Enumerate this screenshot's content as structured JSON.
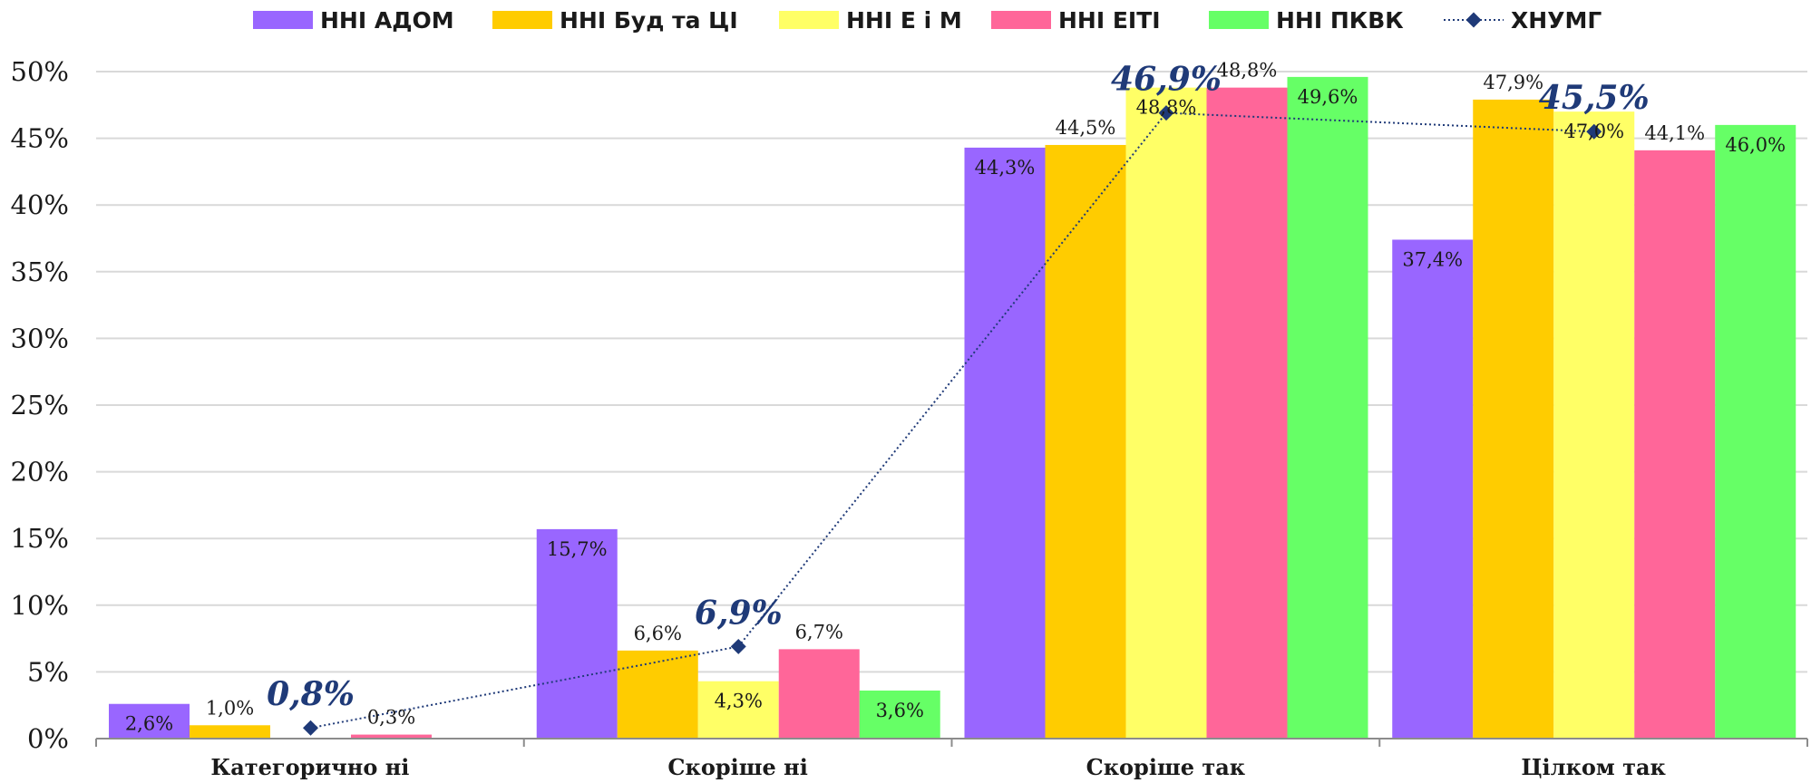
{
  "chart_data": {
    "type": "bar",
    "categories": [
      "Категорично ні",
      "Скоріше ні",
      "Скоріше так",
      "Цілком так"
    ],
    "ylim": [
      0,
      50
    ],
    "yticks": [
      0,
      5,
      10,
      15,
      20,
      25,
      30,
      35,
      40,
      45,
      50
    ],
    "ytick_labels": [
      "0%",
      "5%",
      "10%",
      "15%",
      "20%",
      "25%",
      "30%",
      "35%",
      "40%",
      "45%",
      "50%"
    ],
    "grid": true,
    "legend_position": "top",
    "series": [
      {
        "name": "ННІ АДОМ",
        "color": "#9966ff",
        "values": [
          2.6,
          15.7,
          44.3,
          37.4
        ],
        "labels": [
          "2,6%",
          "15,7%",
          "44,3%",
          "37,4%"
        ],
        "label_pos": [
          "inside",
          "inside",
          "inside",
          "inside"
        ]
      },
      {
        "name": "ННІ Буд та ЦІ",
        "color": "#ffcc00",
        "values": [
          1.0,
          6.6,
          44.5,
          47.9
        ],
        "labels": [
          "1,0%",
          "6,6%",
          "44,5%",
          "47,9%"
        ],
        "label_pos": [
          "above",
          "above",
          "above",
          "above"
        ]
      },
      {
        "name": "ННІ Е і М",
        "color": "#ffff66",
        "values": [
          0,
          4.3,
          48.8,
          47.0
        ],
        "labels": [
          "",
          "4,3%",
          "48,8%",
          "47,0%"
        ],
        "label_pos": [
          "none",
          "inside",
          "inside",
          "inside"
        ]
      },
      {
        "name": "ННІ ЕІТІ",
        "color": "#ff6699",
        "values": [
          0.3,
          6.7,
          48.8,
          44.1
        ],
        "labels": [
          "0,3%",
          "6,7%",
          "48,8%",
          "44,1%"
        ],
        "label_pos": [
          "above",
          "above",
          "above",
          "above"
        ]
      },
      {
        "name": "ННІ ПКВК",
        "color": "#66ff66",
        "values": [
          0,
          3.6,
          49.6,
          46.0
        ],
        "labels": [
          "",
          "3,6%",
          "49,6%",
          "46,0%"
        ],
        "label_pos": [
          "none",
          "inside",
          "inside",
          "inside"
        ]
      }
    ],
    "line_series": {
      "name": "ХНУМГ",
      "color": "#1f3a78",
      "values": [
        0.8,
        6.9,
        46.9,
        45.5
      ],
      "labels": [
        "0,8%",
        "6,9%",
        "46,9%",
        "45,5%"
      ]
    }
  }
}
